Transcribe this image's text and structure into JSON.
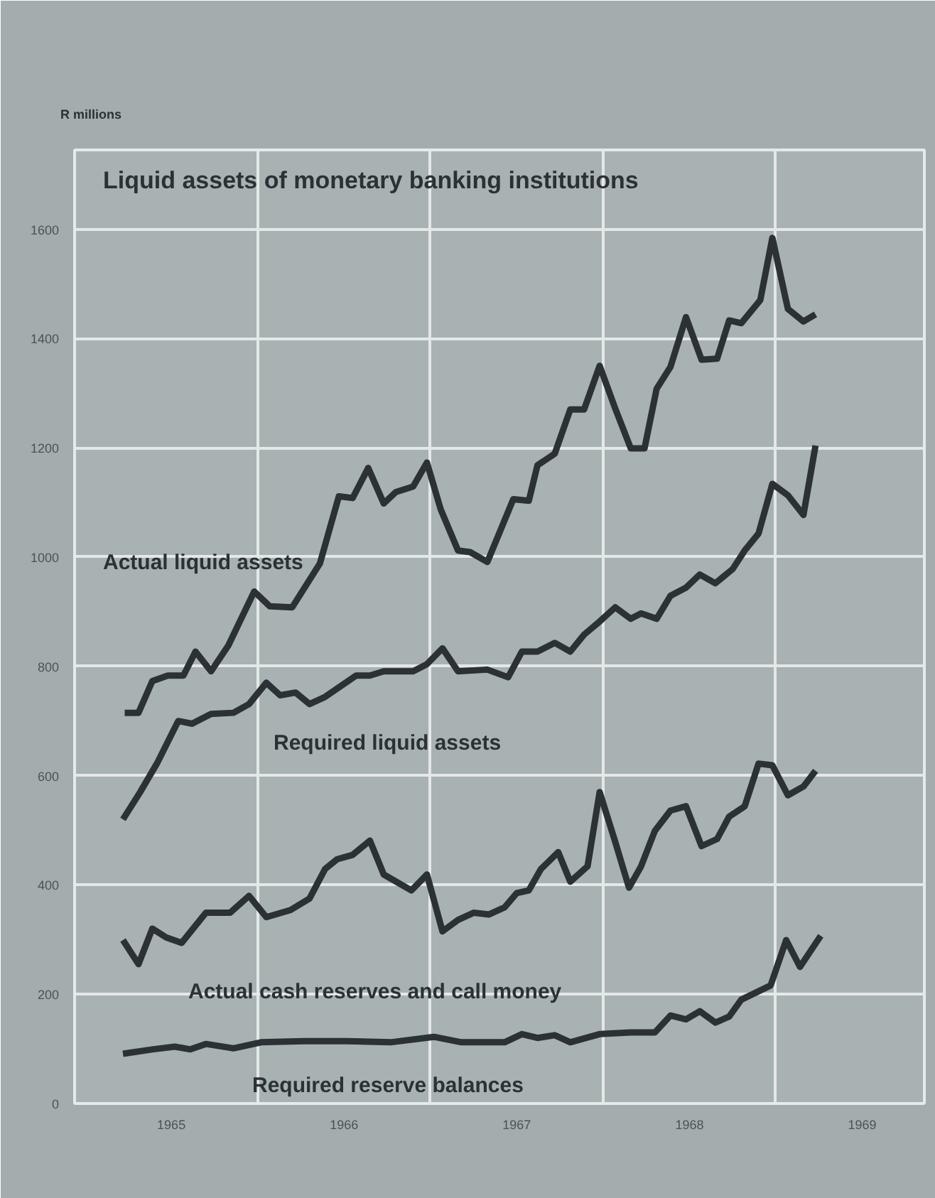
{
  "chart_data": {
    "type": "line",
    "title": "Liquid assets of monetary banking institutions",
    "ylabel": "R millions",
    "xlim": [
      1964.94,
      1969.86
    ],
    "ylim": [
      0,
      1745
    ],
    "xticks": [
      {
        "value": 1965.5,
        "label": "1965"
      },
      {
        "value": 1966.5,
        "label": "1966"
      },
      {
        "value": 1967.5,
        "label": "1967"
      },
      {
        "value": 1968.5,
        "label": "1968"
      },
      {
        "value": 1969.5,
        "label": "1969"
      },
      {
        "value": 1966,
        "label": null
      },
      {
        "value": 1967,
        "label": null
      },
      {
        "value": 1968,
        "label": null
      },
      {
        "value": 1969,
        "label": null
      }
    ],
    "yticks": [
      0,
      200,
      400,
      600,
      800,
      1000,
      1200,
      1400,
      1600
    ],
    "grid": true,
    "marker": "none",
    "line_style": "solid",
    "series": [
      {
        "name": "Actual liquid assets",
        "color": "#2b3134",
        "x": [
          1965.23,
          1965.31,
          1965.39,
          1965.48,
          1965.57,
          1965.64,
          1965.73,
          1965.83,
          1965.98,
          1966.07,
          1966.2,
          1966.36,
          1966.47,
          1966.55,
          1966.64,
          1966.73,
          1966.8,
          1966.9,
          1966.98,
          1967.06,
          1967.16,
          1967.23,
          1967.33,
          1967.48,
          1967.57,
          1967.62,
          1967.72,
          1967.81,
          1967.89,
          1967.98,
          1968.07,
          1968.16,
          1968.24,
          1968.31,
          1968.39,
          1968.48,
          1968.57,
          1968.66,
          1968.73,
          1968.8,
          1968.91,
          1968.98,
          1969.07,
          1969.16,
          1969.23
        ],
        "values": [
          715,
          715,
          773,
          783,
          783,
          827,
          791,
          838,
          937,
          910,
          908,
          988,
          1111,
          1108,
          1163,
          1098,
          1119,
          1129,
          1173,
          1087,
          1012,
          1009,
          991,
          1106,
          1103,
          1168,
          1189,
          1270,
          1270,
          1350,
          1272,
          1199,
          1199,
          1308,
          1348,
          1439,
          1361,
          1363,
          1433,
          1428,
          1470,
          1584,
          1454,
          1431,
          1444
        ]
      },
      {
        "name": "Required liquid assets",
        "color": "#2b3134",
        "x": [
          1965.22,
          1965.32,
          1965.42,
          1965.54,
          1965.62,
          1965.73,
          1965.86,
          1965.95,
          1966.05,
          1966.13,
          1966.22,
          1966.3,
          1966.39,
          1966.57,
          1966.65,
          1966.73,
          1966.9,
          1966.98,
          1967.07,
          1967.16,
          1967.33,
          1967.45,
          1967.53,
          1967.62,
          1967.72,
          1967.81,
          1967.89,
          1967.98,
          1968.07,
          1968.16,
          1968.22,
          1968.31,
          1968.39,
          1968.48,
          1968.56,
          1968.65,
          1968.75,
          1968.82,
          1968.9,
          1968.98,
          1969.07,
          1969.16,
          1969.23
        ],
        "values": [
          520,
          570,
          624,
          700,
          695,
          713,
          715,
          731,
          770,
          747,
          752,
          731,
          744,
          783,
          783,
          791,
          791,
          804,
          833,
          791,
          794,
          780,
          827,
          827,
          843,
          827,
          858,
          882,
          908,
          887,
          897,
          887,
          929,
          944,
          968,
          952,
          978,
          1012,
          1043,
          1134,
          1113,
          1077,
          1204
        ]
      },
      {
        "name": "Actual cash reserves and call money",
        "color": "#2b3134",
        "x": [
          1965.22,
          1965.31,
          1965.39,
          1965.47,
          1965.56,
          1965.7,
          1965.84,
          1965.95,
          1966.05,
          1966.19,
          1966.3,
          1966.39,
          1966.46,
          1966.55,
          1966.65,
          1966.73,
          1966.89,
          1966.98,
          1967.07,
          1967.16,
          1967.25,
          1967.34,
          1967.43,
          1967.5,
          1967.57,
          1967.64,
          1967.74,
          1967.81,
          1967.91,
          1967.98,
          1968.07,
          1968.15,
          1968.22,
          1968.3,
          1968.39,
          1968.48,
          1968.57,
          1968.66,
          1968.73,
          1968.82,
          1968.9,
          1968.98,
          1969.07,
          1969.16,
          1969.23
        ],
        "values": [
          299,
          255,
          320,
          304,
          294,
          349,
          349,
          380,
          341,
          354,
          375,
          429,
          447,
          455,
          481,
          419,
          390,
          419,
          315,
          336,
          349,
          346,
          359,
          385,
          390,
          429,
          460,
          406,
          434,
          570,
          479,
          395,
          434,
          499,
          536,
          544,
          471,
          484,
          525,
          544,
          622,
          619,
          564,
          580,
          609
        ]
      },
      {
        "name": "Required reserve balances",
        "color": "#2b3134",
        "x": [
          1965.22,
          1965.39,
          1965.52,
          1965.61,
          1965.7,
          1965.86,
          1966.02,
          1966.27,
          1966.52,
          1966.77,
          1967.02,
          1967.18,
          1967.43,
          1967.53,
          1967.62,
          1967.72,
          1967.81,
          1967.98,
          1968.16,
          1968.3,
          1968.39,
          1968.48,
          1968.56,
          1968.65,
          1968.73,
          1968.8,
          1968.97,
          1969.06,
          1969.14,
          1969.26
        ],
        "values": [
          91,
          99,
          104,
          99,
          109,
          101,
          112,
          114,
          114,
          112,
          122,
          112,
          112,
          127,
          120,
          125,
          112,
          127,
          130,
          130,
          161,
          154,
          169,
          148,
          159,
          190,
          216,
          299,
          250,
          307
        ]
      }
    ]
  }
}
